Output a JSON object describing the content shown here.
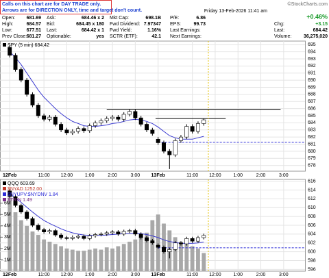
{
  "header": {
    "notice": [
      "Calls on this chart are for DAY TRADE only.",
      "Arrows are for DIRECTION ONLY, time and target don't count."
    ],
    "quote": [
      [
        [
          "Open:",
          "681.69"
        ],
        [
          "Ask:",
          "684.46 x 2"
        ],
        [
          "Mkt Cap:",
          "698.1B"
        ],
        [
          "P/E:",
          "6.86"
        ]
      ],
      [
        [
          "High:",
          "684.57"
        ],
        [
          "Bid:",
          "684.45 x 180"
        ],
        [
          "Fwd Dividend:",
          "7.97347"
        ],
        [
          "EPS:",
          "99.73"
        ]
      ],
      [
        [
          "Low:",
          "677.51"
        ],
        [
          "Last:",
          "684.42 x 1"
        ],
        [
          "Fwd Yield:",
          "1.16%"
        ],
        [
          "Last Earnings:",
          ""
        ]
      ],
      [
        [
          "Prev Close:",
          "681.27"
        ],
        [
          "Optionable:",
          "yes"
        ],
        [
          "SCTR (ETF):",
          "42.1"
        ],
        [
          "Next Earnings:",
          ""
        ]
      ]
    ],
    "credit": "©StockCharts.com",
    "date": "Friday 13-Feb-2026 11:41 am",
    "change_pct": "+0.46%",
    "chg": [
      "Chg:",
      "+3.15"
    ],
    "last": [
      "Last:",
      "684.42"
    ],
    "volume": [
      "Volume:",
      "36,275,020"
    ]
  },
  "chart_data": [
    {
      "type": "candlestick",
      "legend": "SPY (5 min) 684.42",
      "categories": [
        "12Feb",
        null,
        null,
        null,
        null,
        null,
        "11:00",
        null,
        null,
        null,
        "12:00",
        null,
        null,
        null,
        "1:00",
        null,
        null,
        null,
        "2:00",
        null,
        null,
        null,
        "3:00",
        null,
        null,
        null,
        "13Feb",
        null,
        null,
        null,
        null,
        null,
        "11:00",
        null,
        null,
        null,
        "12:00",
        null,
        null,
        null,
        "1:00",
        null,
        null,
        null,
        "2:00",
        null,
        null,
        null,
        "3:00",
        null,
        null,
        null
      ],
      "open": [
        694.6,
        693.5,
        691.5,
        690.0,
        688.0,
        686.5,
        685.0,
        684.5,
        684.8,
        683.8,
        683.0,
        682.6,
        682.8,
        683.2,
        682.9,
        683.6,
        684.0,
        684.3,
        684.6,
        684.8,
        684.5,
        685.2,
        685.6,
        684.7,
        683.8,
        683.0,
        681.7,
        681.2,
        680.0,
        679.5,
        681.5,
        682.0,
        683.5,
        682.8,
        683.9,
        null,
        null,
        null,
        null,
        null,
        null,
        null,
        null,
        null,
        null,
        null,
        null,
        null,
        null,
        null,
        null,
        null
      ],
      "high": [
        694.9,
        693.8,
        691.8,
        690.3,
        688.3,
        686.8,
        685.3,
        685.1,
        685.1,
        684.1,
        683.3,
        683.1,
        683.5,
        683.5,
        683.9,
        684.3,
        684.6,
        684.9,
        685.1,
        685.1,
        685.5,
        685.9,
        685.9,
        685.0,
        684.1,
        683.3,
        682.0,
        681.5,
        680.3,
        681.8,
        682.3,
        683.8,
        683.8,
        684.2,
        684.57,
        null,
        null,
        null,
        null,
        null,
        null,
        null,
        null,
        null,
        null,
        null,
        null,
        null,
        null,
        null,
        null,
        null
      ],
      "low": [
        693.2,
        691.2,
        689.7,
        687.7,
        686.2,
        684.7,
        684.2,
        684.2,
        683.5,
        682.7,
        682.3,
        682.3,
        682.5,
        682.6,
        682.6,
        683.3,
        683.7,
        684.0,
        684.3,
        684.2,
        684.2,
        684.9,
        684.4,
        683.5,
        682.7,
        682.2,
        680.9,
        679.7,
        677.5,
        679.2,
        681.2,
        681.7,
        682.5,
        682.5,
        683.6,
        null,
        null,
        null,
        null,
        null,
        null,
        null,
        null,
        null,
        null,
        null,
        null,
        null,
        null,
        null,
        null,
        null
      ],
      "close": [
        693.5,
        691.5,
        690.0,
        688.0,
        686.5,
        685.0,
        684.5,
        684.8,
        683.8,
        683.0,
        682.6,
        682.8,
        683.2,
        682.9,
        683.6,
        684.0,
        684.3,
        684.6,
        684.8,
        684.5,
        685.2,
        685.6,
        684.7,
        683.8,
        683.0,
        682.5,
        681.2,
        680.0,
        679.5,
        681.5,
        682.0,
        683.5,
        682.8,
        683.9,
        684.42,
        null,
        null,
        null,
        null,
        null,
        null,
        null,
        null,
        null,
        null,
        null,
        null,
        null,
        null,
        null,
        null,
        null
      ],
      "overlays": [
        {
          "color": "#3a3ad0",
          "values": [
            694.0,
            693.2,
            692.2,
            691.0,
            689.8,
            688.6,
            687.6,
            686.8,
            686.0,
            685.3,
            684.7,
            684.2,
            683.9,
            683.6,
            683.5,
            683.5,
            683.6,
            683.7,
            683.9,
            684.0,
            684.2,
            684.4,
            684.5,
            684.4,
            684.2,
            683.9,
            683.4,
            682.8,
            682.2,
            681.9,
            681.7,
            681.7,
            681.7,
            681.9,
            682.1,
            null,
            null,
            null,
            null,
            null,
            null,
            null,
            null,
            null,
            null,
            null,
            null,
            null,
            null,
            null,
            null,
            null
          ]
        }
      ],
      "levels": [
        {
          "value": 685.9,
          "color": "#000000",
          "dashed": false
        },
        {
          "value": 684.6,
          "color": "#000000",
          "dashed": false
        },
        {
          "value": 681.27,
          "color": "#2a2ad8",
          "dashed": true
        }
      ],
      "ylim": [
        677.2,
        695.5
      ],
      "yticks": [
        678,
        679,
        680,
        681,
        682,
        683,
        684,
        685,
        686,
        687,
        688,
        689,
        690,
        691,
        692,
        693,
        694,
        695
      ],
      "grid": true
    },
    {
      "type": "candlestick",
      "legend": [
        "QQQ 603.69",
        "$NYAD 1252.00",
        "$NYUPV:$NYDNV 1.84",
        "$TRIN 1.49"
      ],
      "legend_colors": [
        "#000000",
        "#c0392b",
        "#2a2ad8",
        "#7b2d8b"
      ],
      "categories": [
        "12Feb",
        null,
        null,
        null,
        null,
        null,
        "11:00",
        null,
        null,
        null,
        "12:00",
        null,
        null,
        null,
        "1:00",
        null,
        null,
        null,
        "2:00",
        null,
        null,
        null,
        "3:00",
        null,
        null,
        null,
        "13Feb",
        null,
        null,
        null,
        null,
        null,
        "11:00",
        null,
        null,
        null,
        "12:00",
        null,
        null,
        null,
        "1:00",
        null,
        null,
        null,
        "2:00",
        null,
        null,
        null,
        "3:00",
        null,
        null,
        null
      ],
      "open": [
        613.8,
        612.5,
        610.5,
        609,
        607.5,
        606,
        605,
        604.5,
        604.8,
        603.8,
        603.2,
        603.0,
        603.3,
        603.5,
        603.0,
        603.6,
        603.9,
        604.0,
        604.3,
        604.5,
        604.0,
        604.6,
        604.8,
        604.0,
        603.2,
        602.5,
        601.5,
        601.0,
        600.0,
        600.5,
        602.0,
        601.8,
        603.0,
        602.4,
        603.2,
        null,
        null,
        null,
        null,
        null,
        null,
        null,
        null,
        null,
        null,
        null,
        null,
        null,
        null,
        null,
        null,
        null
      ],
      "high": [
        614.2,
        612.9,
        610.9,
        609.4,
        607.9,
        606.4,
        605.4,
        605.2,
        605.2,
        604.2,
        603.6,
        603.7,
        603.9,
        603.9,
        604.0,
        604.3,
        604.4,
        604.7,
        604.9,
        604.9,
        605.0,
        605.2,
        605.2,
        604.4,
        603.6,
        602.9,
        601.9,
        601.4,
        600.9,
        602.4,
        602.4,
        603.4,
        603.4,
        603.6,
        604.1,
        null,
        null,
        null,
        null,
        null,
        null,
        null,
        null,
        null,
        null,
        null,
        null,
        null,
        null,
        null,
        null,
        null
      ],
      "low": [
        612.1,
        610.1,
        608.6,
        607.1,
        605.6,
        604.6,
        604.1,
        604.1,
        603.4,
        602.8,
        602.6,
        602.6,
        602.9,
        602.6,
        602.6,
        603.2,
        603.5,
        603.6,
        603.9,
        603.6,
        603.6,
        604.2,
        603.6,
        602.8,
        602.1,
        601.6,
        600.6,
        599.6,
        598.5,
        600.1,
        601.4,
        601.4,
        602.0,
        602.0,
        602.8,
        null,
        null,
        null,
        null,
        null,
        null,
        null,
        null,
        null,
        null,
        null,
        null,
        null,
        null,
        null,
        null,
        null
      ],
      "close": [
        612.5,
        610.5,
        609,
        607.5,
        606,
        605,
        604.5,
        604.8,
        603.8,
        603.2,
        603.0,
        603.3,
        603.5,
        603.0,
        603.6,
        603.9,
        604.0,
        604.3,
        604.5,
        604.0,
        604.6,
        604.8,
        604.0,
        603.2,
        602.5,
        602.0,
        601.0,
        600.0,
        600.5,
        602.0,
        601.8,
        603.0,
        602.4,
        603.2,
        603.69,
        null,
        null,
        null,
        null,
        null,
        null,
        null,
        null,
        null,
        null,
        null,
        null,
        null,
        null,
        null,
        null,
        null
      ],
      "overlays": [
        {
          "color": "#3a3ad0",
          "values": [
            613,
            612.2,
            611.2,
            610.1,
            609,
            608,
            607.1,
            606.4,
            605.8,
            605.2,
            604.7,
            604.3,
            604.0,
            603.8,
            603.7,
            603.7,
            603.7,
            603.8,
            603.9,
            604.0,
            604.1,
            604.2,
            604.2,
            604.1,
            603.9,
            603.6,
            603.2,
            602.7,
            602.3,
            602.1,
            601.9,
            601.9,
            601.9,
            602.0,
            602.2,
            null,
            null,
            null,
            null,
            null,
            null,
            null,
            null,
            null,
            null,
            null,
            null,
            null,
            null,
            null,
            null,
            null
          ]
        }
      ],
      "volume": {
        "color": "#a8a8a8",
        "values": [
          6.5,
          5.2,
          4.5,
          4.0,
          3.5,
          3.2,
          2.8,
          2.6,
          2.4,
          2.2,
          2.0,
          1.9,
          1.8,
          1.8,
          1.9,
          2.0,
          1.9,
          2.1,
          2.0,
          2.2,
          2.4,
          2.6,
          2.8,
          3.0,
          3.4,
          4.5,
          5.0,
          4.2,
          3.6,
          3.0,
          2.6,
          2.4,
          2.2,
          2.0,
          1.6,
          null,
          null,
          null,
          null,
          null,
          null,
          null,
          null,
          null,
          null,
          null,
          null,
          null,
          null,
          null,
          null,
          null
        ],
        "vlim": [
          0,
          8.1
        ],
        "vticks": [
          {
            "value": 1,
            "label": "1M"
          },
          {
            "value": 2,
            "label": "2M"
          },
          {
            "value": 3,
            "label": "3M"
          },
          {
            "value": 4,
            "label": "4M"
          },
          {
            "value": 5,
            "label": "5M"
          },
          {
            "value": 6,
            "label": "6M"
          }
        ]
      },
      "levels": [
        {
          "value": 600.9,
          "color": "#2a2ad8",
          "dashed": true
        }
      ],
      "ylim": [
        595.6,
        616.4
      ],
      "yticks": [
        596,
        598,
        600,
        602,
        604,
        606,
        608,
        610,
        612,
        614,
        616
      ],
      "grid": true
    }
  ]
}
